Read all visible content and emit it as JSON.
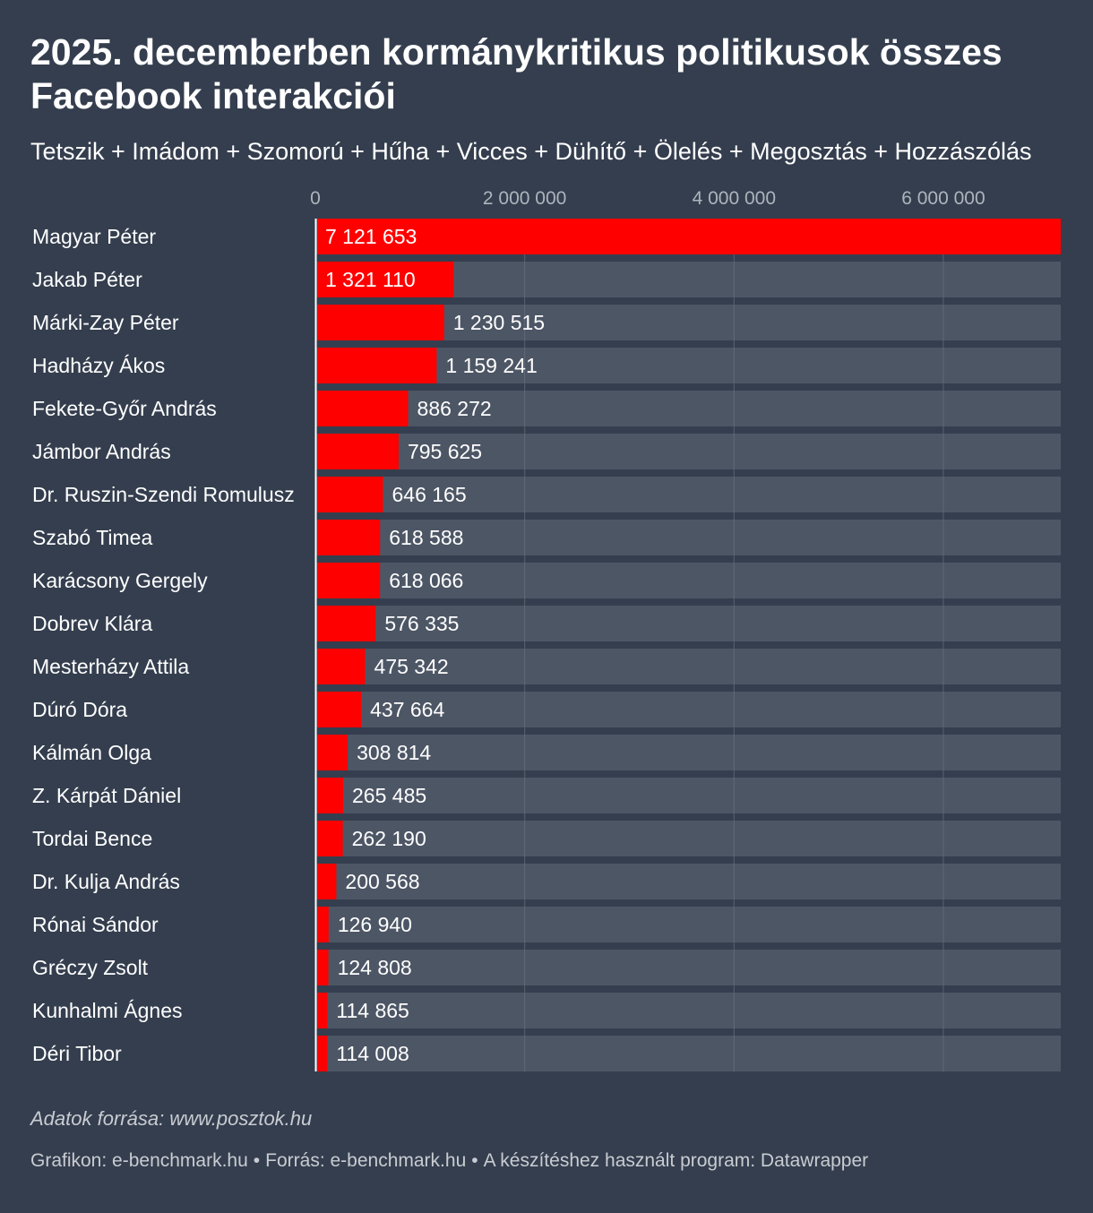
{
  "title": "2025. decemberben kormánykritikus politikusok összes Facebook interakciói",
  "subtitle": "Tetszik + Imádom + Szomorú + Hűha + Vicces + Dühítő + Ölelés + Megosztás + Hozzászólás",
  "notes": "Adatok forrása: www.posztok.hu",
  "footer": {
    "graphic": "Grafikon: e-benchmark.hu",
    "source": "Forrás: e-benchmark.hu",
    "tool": "A készítéshez használt program: Datawrapper",
    "separator": "•"
  },
  "colors": {
    "background": "#343e4e",
    "bar": "#ff0000",
    "track": "#4d5665",
    "grid": "#6a7282",
    "tick_text": "#aeb4bd"
  },
  "chart_data": {
    "type": "bar",
    "orientation": "horizontal",
    "xlim": [
      0,
      7121653
    ],
    "ticks": [
      {
        "value": 0,
        "label": "0"
      },
      {
        "value": 2000000,
        "label": "2 000 000"
      },
      {
        "value": 4000000,
        "label": "4 000 000"
      },
      {
        "value": 6000000,
        "label": "6 000 000"
      }
    ],
    "grid": true,
    "categories": [
      "Magyar Péter",
      "Jakab Péter",
      "Márki-Zay Péter",
      "Hadházy Ákos",
      "Fekete-Győr András",
      "Jámbor András",
      "Dr. Ruszin-Szendi Romulusz",
      "Szabó Timea",
      "Karácsony Gergely",
      "Dobrev Klára",
      "Mesterházy Attila",
      "Dúró Dóra",
      "Kálmán Olga",
      "Z. Kárpát Dániel",
      "Tordai Bence",
      "Dr. Kulja András",
      "Rónai Sándor",
      "Gréczy Zsolt",
      "Kunhalmi Ágnes",
      "Déri Tibor"
    ],
    "values": [
      7121653,
      1321110,
      1230515,
      1159241,
      886272,
      795625,
      646165,
      618588,
      618066,
      576335,
      475342,
      437664,
      308814,
      265485,
      262190,
      200568,
      126940,
      124808,
      114865,
      114008
    ],
    "value_labels": [
      "7 121 653",
      "1 321 110",
      "1 230 515",
      "1 159 241",
      "886 272",
      "795 625",
      "646 165",
      "618 588",
      "618 066",
      "576 335",
      "475 342",
      "437 664",
      "308 814",
      "265 485",
      "262 190",
      "200 568",
      "126 940",
      "124 808",
      "114 865",
      "114 008"
    ]
  }
}
